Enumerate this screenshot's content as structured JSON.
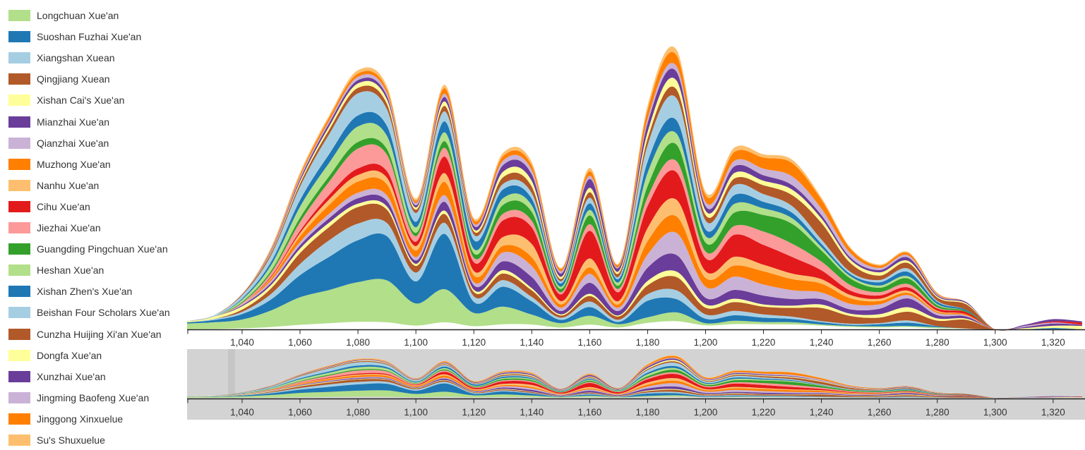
{
  "chart_data": {
    "type": "area",
    "subtype": "streamgraph",
    "x_ticks": [
      1040,
      1060,
      1080,
      1100,
      1120,
      1140,
      1160,
      1180,
      1200,
      1220,
      1240,
      1260,
      1280,
      1300,
      1320
    ],
    "x_tick_labels": [
      "1,040",
      "1,060",
      "1,080",
      "1,100",
      "1,120",
      "1,140",
      "1,160",
      "1,180",
      "1,200",
      "1,220",
      "1,240",
      "1,260",
      "1,280",
      "1,300",
      "1,320"
    ],
    "xlim": [
      1021,
      1331
    ],
    "legend_position": "left",
    "x": [
      1020,
      1030,
      1040,
      1050,
      1060,
      1070,
      1080,
      1090,
      1100,
      1110,
      1120,
      1130,
      1140,
      1150,
      1160,
      1170,
      1180,
      1190,
      1200,
      1210,
      1220,
      1230,
      1240,
      1250,
      1260,
      1270,
      1280,
      1290,
      1300,
      1310,
      1320,
      1330
    ],
    "series": [
      {
        "name": "Longchuan Xue'an",
        "color": "#b2df8a",
        "values": [
          0.5,
          0.6,
          0.8,
          1.5,
          2.5,
          3.0,
          3.6,
          3.8,
          2.0,
          3.0,
          1.2,
          1.6,
          0.9,
          0.4,
          0.8,
          0.3,
          0.5,
          0.8,
          0.2,
          0.3,
          0.2,
          0.2,
          0.1,
          0.1,
          0.1,
          0.1,
          0.1,
          0,
          0,
          0,
          0,
          0
        ]
      },
      {
        "name": "Suoshan Fuzhai Xue'an",
        "color": "#1f78b4",
        "values": [
          0.1,
          0.2,
          0.5,
          1.0,
          2.0,
          3.0,
          3.8,
          4.0,
          2.0,
          5.0,
          1.0,
          1.8,
          1.2,
          0.3,
          0.8,
          0.2,
          1.5,
          1.2,
          0.4,
          0.5,
          0.4,
          0.3,
          0.2,
          0.1,
          0.2,
          0.3,
          0.1,
          0,
          0,
          0,
          0.1,
          0
        ]
      },
      {
        "name": "Xiangshan Xuean",
        "color": "#a6cee3",
        "values": [
          0,
          0.1,
          0.2,
          0.5,
          1.0,
          1.5,
          1.5,
          1.2,
          0.8,
          1.0,
          0.5,
          0.6,
          0.4,
          0.2,
          0.5,
          0.2,
          0.6,
          0.8,
          0.4,
          0.4,
          0.3,
          0.2,
          0.1,
          0.1,
          0.1,
          0.2,
          0,
          0,
          0,
          0,
          0,
          0
        ]
      },
      {
        "name": "Qingjiang Xuean",
        "color": "#b15928",
        "values": [
          0,
          0,
          0.2,
          0.5,
          1.0,
          1.2,
          1.5,
          1.2,
          0.6,
          0.8,
          0.4,
          0.6,
          0.6,
          0.2,
          0.5,
          0.3,
          0.8,
          1.2,
          0.6,
          0.8,
          0.7,
          0.8,
          1.2,
          0.7,
          0.5,
          0.8,
          0.5,
          0.8,
          0,
          0,
          0,
          0
        ]
      },
      {
        "name": "Xishan Cai's Xue'an",
        "color": "#ffff99",
        "values": [
          0.1,
          0.2,
          0.3,
          0.3,
          0.4,
          0.4,
          0.3,
          0.3,
          0.2,
          0.3,
          0.2,
          0.3,
          0.2,
          0.1,
          0.2,
          0.1,
          0.4,
          0.5,
          0.3,
          0.3,
          0.2,
          0.2,
          0.3,
          0.2,
          0.3,
          0.4,
          0.2,
          0.1,
          0,
          0.1,
          0.2,
          0.3
        ]
      },
      {
        "name": "Mianzhai Xue'an",
        "color": "#6a3d9a",
        "values": [
          0,
          0,
          0.1,
          0.2,
          0.3,
          0.4,
          0.5,
          0.5,
          0.3,
          0.8,
          0.4,
          0.8,
          1.0,
          0.3,
          1.0,
          0.4,
          1.2,
          1.5,
          0.6,
          0.8,
          0.8,
          0.6,
          0.5,
          0.4,
          0.5,
          0.8,
          0.3,
          0.2,
          0,
          0.1,
          0.2,
          0.1
        ]
      },
      {
        "name": "Qianzhai Xue'an",
        "color": "#cab2d6",
        "values": [
          0,
          0,
          0.1,
          0.2,
          0.3,
          0.4,
          0.5,
          0.5,
          0.3,
          0.6,
          0.3,
          0.8,
          1.0,
          0.3,
          0.8,
          0.3,
          1.2,
          2.0,
          1.0,
          1.2,
          1.0,
          0.8,
          0.6,
          0.5,
          0.4,
          0.3,
          0.2,
          0.1,
          0,
          0.1,
          0.1,
          0
        ]
      },
      {
        "name": "Muzhong Xue'an",
        "color": "#ff7f00",
        "values": [
          0,
          0,
          0,
          0.2,
          0.5,
          0.8,
          1.0,
          1.0,
          0.6,
          1.2,
          0.6,
          0.6,
          0.8,
          0.3,
          0.6,
          0.3,
          1.2,
          1.5,
          0.8,
          1.0,
          1.2,
          1.0,
          0.8,
          0.5,
          0.3,
          0.2,
          0.1,
          0.1,
          0,
          0,
          0,
          0
        ]
      },
      {
        "name": "Nanhu Xue'an",
        "color": "#fdbf6f",
        "values": [
          0,
          0,
          0,
          0.1,
          0.3,
          0.5,
          0.6,
          0.6,
          0.4,
          0.8,
          0.4,
          0.8,
          1.2,
          0.3,
          0.8,
          0.3,
          1.2,
          1.5,
          0.6,
          0.8,
          0.6,
          0.5,
          0.4,
          0.3,
          0.2,
          0.2,
          0.1,
          0,
          0,
          0,
          0,
          0
        ]
      },
      {
        "name": "Cihu Xue'an",
        "color": "#e31a1c",
        "values": [
          0,
          0,
          0,
          0.1,
          0.2,
          0.4,
          0.6,
          0.6,
          0.4,
          1.5,
          0.8,
          1.5,
          1.5,
          0.6,
          2.5,
          0.8,
          2.0,
          2.5,
          1.2,
          2.0,
          1.8,
          1.5,
          0.8,
          0.4,
          0.3,
          0.3,
          0.2,
          0.2,
          0,
          0,
          0.1,
          0.2
        ]
      },
      {
        "name": "Jiezhai Xue'an",
        "color": "#fb9a99",
        "values": [
          0,
          0,
          0.1,
          0.3,
          0.8,
          1.2,
          1.8,
          1.5,
          0.5,
          0.8,
          0.4,
          0.6,
          0.6,
          0.2,
          0.6,
          0.3,
          0.8,
          1.0,
          0.6,
          0.8,
          1.2,
          1.2,
          0.8,
          0.5,
          0.3,
          0.3,
          0.1,
          0,
          0,
          0,
          0,
          0
        ]
      },
      {
        "name": "Guangding Pingchuan Xue'an",
        "color": "#33a02c",
        "values": [
          0,
          0,
          0.1,
          0.2,
          0.4,
          0.5,
          0.6,
          0.5,
          0.3,
          0.6,
          0.4,
          0.8,
          0.8,
          0.3,
          0.8,
          0.3,
          1.0,
          1.5,
          0.8,
          1.2,
          1.5,
          1.8,
          1.0,
          0.6,
          0.4,
          0.5,
          0.2,
          0.1,
          0,
          0,
          0,
          0
        ]
      },
      {
        "name": "Heshan Xue'an",
        "color": "#b2df8a",
        "values": [
          0,
          0,
          0.2,
          0.5,
          1.0,
          1.2,
          1.4,
          1.2,
          0.5,
          0.8,
          0.4,
          0.6,
          0.6,
          0.2,
          0.5,
          0.3,
          1.2,
          1.0,
          0.6,
          0.8,
          0.6,
          0.5,
          0.3,
          0.2,
          0.2,
          0.2,
          0.1,
          0,
          0,
          0,
          0,
          0
        ]
      },
      {
        "name": "Xishan Zhen's Xue'an",
        "color": "#1f78b4",
        "values": [
          0,
          0,
          0.1,
          0.3,
          0.6,
          0.8,
          1.0,
          0.9,
          0.5,
          1.0,
          0.8,
          0.8,
          0.6,
          0.3,
          0.6,
          0.3,
          1.0,
          1.2,
          0.6,
          0.8,
          0.6,
          0.5,
          0.3,
          0.2,
          0.3,
          0.4,
          0.2,
          0.1,
          0,
          0,
          0,
          0
        ]
      },
      {
        "name": "Beishan Four Scholars Xue'an",
        "color": "#a6cee3",
        "values": [
          0,
          0.1,
          0.3,
          0.6,
          1.2,
          1.8,
          2.0,
          1.5,
          0.8,
          0.9,
          0.5,
          0.5,
          0.5,
          0.2,
          0.5,
          0.2,
          1.5,
          2.0,
          0.8,
          0.9,
          0.7,
          0.6,
          0.4,
          0.2,
          0.2,
          0.3,
          0.1,
          0,
          0,
          0,
          0,
          0
        ]
      },
      {
        "name": "Cunzha Huijing Xi'an Xue'an",
        "color": "#b15928",
        "values": [
          0,
          0,
          0.1,
          0.2,
          0.3,
          0.4,
          0.5,
          0.5,
          0.3,
          0.5,
          0.3,
          0.6,
          0.6,
          0.2,
          0.5,
          0.3,
          0.6,
          0.8,
          0.5,
          0.6,
          0.8,
          1.0,
          1.5,
          0.8,
          0.4,
          0.5,
          0.3,
          0.5,
          0,
          0,
          0,
          0
        ]
      },
      {
        "name": "Dongfa Xue'an",
        "color": "#ffff99",
        "values": [
          0,
          0,
          0,
          0.1,
          0.2,
          0.3,
          0.4,
          0.4,
          0.2,
          0.4,
          0.2,
          0.5,
          0.5,
          0.2,
          0.4,
          0.2,
          0.6,
          0.8,
          0.4,
          0.5,
          0.4,
          0.5,
          0.4,
          0.3,
          0.3,
          0.2,
          0.1,
          0.1,
          0,
          0,
          0,
          0
        ]
      },
      {
        "name": "Xunzhai Xue'an",
        "color": "#6a3d9a",
        "values": [
          0,
          0,
          0,
          0.1,
          0.2,
          0.3,
          0.3,
          0.3,
          0.2,
          0.4,
          0.3,
          0.6,
          0.6,
          0.3,
          0.8,
          0.3,
          0.8,
          0.8,
          0.4,
          0.6,
          0.5,
          0.4,
          0.3,
          0.2,
          0.2,
          0.3,
          0.1,
          0.1,
          0,
          0.1,
          0.2,
          0.1
        ]
      },
      {
        "name": "Jingming Baofeng Xue'an",
        "color": "#cab2d6",
        "values": [
          0,
          0,
          0,
          0.1,
          0.2,
          0.2,
          0.3,
          0.3,
          0.2,
          0.3,
          0.2,
          0.4,
          0.4,
          0.2,
          0.3,
          0.1,
          0.4,
          0.5,
          0.4,
          0.5,
          0.6,
          0.8,
          0.6,
          0.4,
          0.2,
          0.2,
          0.1,
          0,
          0,
          0,
          0,
          0
        ]
      },
      {
        "name": "Jinggong Xinxuelue",
        "color": "#ff7f00",
        "values": [
          0,
          0,
          0,
          0.1,
          0.2,
          0.3,
          0.3,
          0.3,
          0.2,
          0.5,
          0.3,
          0.4,
          0.4,
          0.2,
          0.4,
          0.2,
          0.8,
          1.0,
          0.6,
          0.8,
          1.0,
          1.2,
          0.8,
          0.4,
          0.2,
          0.2,
          0.1,
          0,
          0,
          0,
          0,
          0
        ]
      },
      {
        "name": "Su's Shuxuelue",
        "color": "#fdbf6f",
        "values": [
          0,
          0,
          0,
          0.1,
          0.2,
          0.2,
          0.3,
          0.3,
          0.2,
          0.3,
          0.2,
          0.3,
          0.3,
          0.1,
          0.3,
          0.1,
          0.4,
          0.5,
          0.3,
          0.4,
          0.3,
          0.3,
          0.2,
          0.1,
          0.1,
          0.1,
          0,
          0,
          0,
          0,
          0,
          0
        ]
      }
    ]
  }
}
